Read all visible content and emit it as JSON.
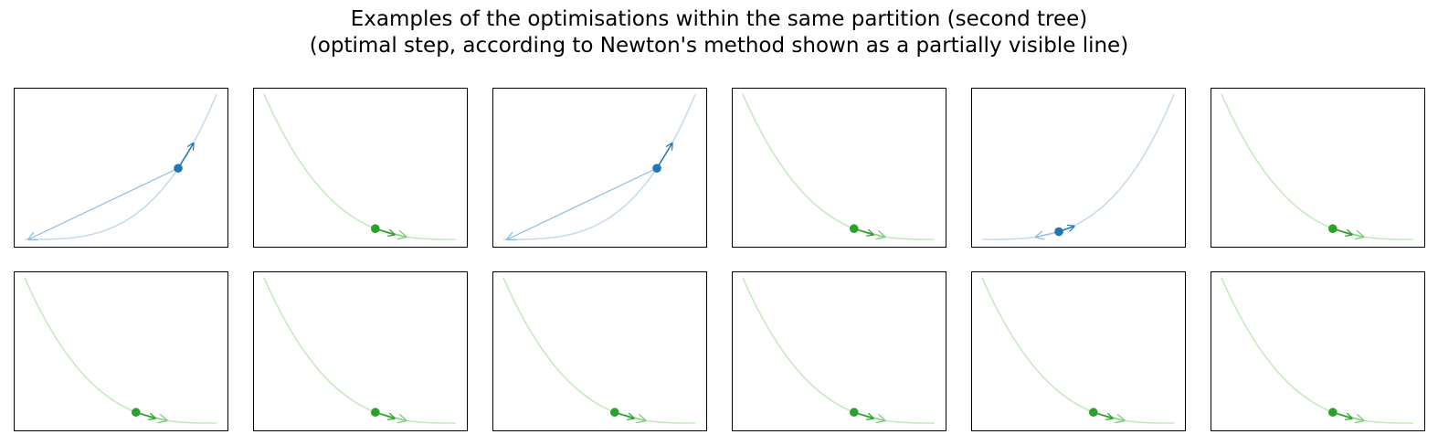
{
  "figure": {
    "title_line1": "Examples of the optimisations within the same partition (second tree)",
    "title_line2": "(optimal step, according to Newton's method shown as a partially visible line)"
  },
  "colors": {
    "blue": "#1f77b4",
    "blue_light": "#c6dbef",
    "blue_arrow_light": "#8fbce0",
    "green": "#2ca02c",
    "green_light": "#c7e9c0",
    "green_arrow_light": "#7ccb7c"
  },
  "chart_data": [
    {
      "type": "line",
      "panel": 1,
      "curve": "increasing",
      "color": "blue",
      "point": 0.8,
      "step": 0.08,
      "newton_step": -0.78,
      "grid": false,
      "axes_ticks": false
    },
    {
      "type": "line",
      "panel": 2,
      "curve": "decreasing",
      "color": "green",
      "point": 0.58,
      "step": 0.1,
      "grid": false,
      "axes_ticks": false
    },
    {
      "type": "line",
      "panel": 3,
      "curve": "increasing",
      "color": "blue",
      "point": 0.8,
      "step": 0.08,
      "newton_step": -0.78,
      "grid": false,
      "axes_ticks": false
    },
    {
      "type": "line",
      "panel": 4,
      "curve": "decreasing",
      "color": "green",
      "point": 0.58,
      "step": 0.1,
      "grid": false,
      "axes_ticks": false
    },
    {
      "type": "line",
      "panel": 5,
      "curve": "increasing",
      "color": "blue",
      "point": 0.4,
      "step": 0.08,
      "newton_step": -0.12,
      "grid": false,
      "axes_ticks": false
    },
    {
      "type": "line",
      "panel": 6,
      "curve": "decreasing",
      "color": "green",
      "point": 0.58,
      "step": 0.1,
      "grid": false,
      "axes_ticks": false
    },
    {
      "type": "line",
      "panel": 7,
      "curve": "decreasing",
      "color": "green",
      "point": 0.58,
      "step": 0.1,
      "grid": false,
      "axes_ticks": false
    },
    {
      "type": "line",
      "panel": 8,
      "curve": "decreasing",
      "color": "green",
      "point": 0.58,
      "step": 0.1,
      "grid": false,
      "axes_ticks": false
    },
    {
      "type": "line",
      "panel": 9,
      "curve": "decreasing",
      "color": "green",
      "point": 0.58,
      "step": 0.1,
      "grid": false,
      "axes_ticks": false
    },
    {
      "type": "line",
      "panel": 10,
      "curve": "decreasing",
      "color": "green",
      "point": 0.58,
      "step": 0.1,
      "grid": false,
      "axes_ticks": false
    },
    {
      "type": "line",
      "panel": 11,
      "curve": "decreasing",
      "color": "green",
      "point": 0.58,
      "step": 0.1,
      "grid": false,
      "axes_ticks": false
    },
    {
      "type": "line",
      "panel": 12,
      "curve": "decreasing",
      "color": "green",
      "point": 0.58,
      "step": 0.1,
      "grid": false,
      "axes_ticks": false
    }
  ]
}
